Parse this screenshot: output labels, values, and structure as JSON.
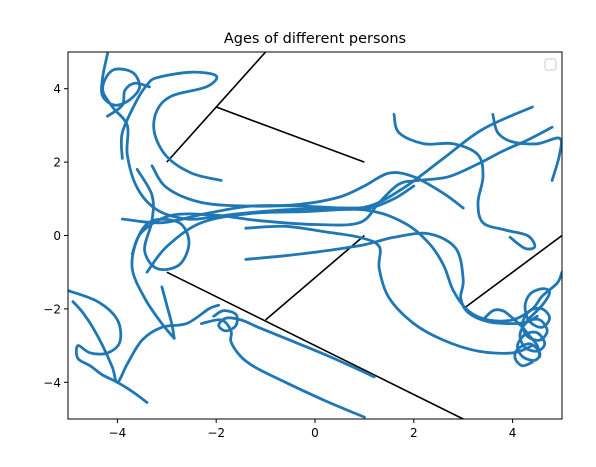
{
  "chart_data": {
    "type": "line",
    "title": "Ages of different persons",
    "xlabel": "",
    "ylabel": "",
    "xlim": [
      -5,
      5
    ],
    "ylim": [
      -5,
      5
    ],
    "x_ticks": [
      -4,
      -2,
      0,
      2,
      4
    ],
    "y_ticks": [
      -4,
      -2,
      0,
      2,
      4
    ],
    "grid": false,
    "legend": {
      "placement": "upper right",
      "entries": []
    },
    "colors": {
      "trajectory": "#1f77b4",
      "segment": "#000000"
    },
    "segments": [
      {
        "points": [
          [
            -3,
            2
          ],
          [
            -1,
            5
          ]
        ]
      },
      {
        "points": [
          [
            -2,
            3.5
          ],
          [
            1,
            2
          ]
        ]
      },
      {
        "points": [
          [
            -3,
            -1
          ],
          [
            3,
            -5
          ]
        ]
      },
      {
        "points": [
          [
            -1,
            -2.3
          ],
          [
            1,
            0
          ]
        ]
      },
      {
        "points": [
          [
            3,
            -2
          ],
          [
            5,
            0
          ]
        ]
      }
    ],
    "series": [
      {
        "points": [
          [
            -4.2,
            4.95
          ],
          [
            -4.3,
            4.3
          ],
          [
            -4.3,
            3.8
          ],
          [
            -4.05,
            3.55
          ],
          [
            -3.75,
            3.7
          ],
          [
            -3.55,
            4.05
          ],
          [
            -3.7,
            4.45
          ],
          [
            -4.1,
            4.5
          ],
          [
            -4.3,
            4.0
          ],
          [
            -4.1,
            3.5
          ],
          [
            -3.8,
            3.0
          ],
          [
            -3.8,
            2.2
          ],
          [
            -3.6,
            1.3
          ],
          [
            -3.2,
            0.7
          ],
          [
            -2.6,
            0.45
          ],
          [
            -2.1,
            0.5
          ],
          [
            -1.5,
            0.6
          ],
          [
            -0.6,
            0.7
          ],
          [
            0.4,
            0.75
          ],
          [
            1.1,
            0.8
          ],
          [
            1.8,
            1.3
          ],
          [
            2.6,
            2.1
          ],
          [
            3.4,
            2.9
          ],
          [
            4.4,
            3.5
          ]
        ]
      },
      {
        "points": [
          [
            -3.9,
            2.1
          ],
          [
            -3.9,
            2.8
          ],
          [
            -3.6,
            3.7
          ],
          [
            -3.4,
            4.1
          ],
          [
            -3.2,
            4.3
          ],
          [
            -2.5,
            4.45
          ],
          [
            -2.0,
            4.35
          ],
          [
            -2.2,
            4.05
          ],
          [
            -2.9,
            3.8
          ],
          [
            -3.2,
            3.4
          ],
          [
            -3.25,
            2.8
          ],
          [
            -3.0,
            2.15
          ],
          [
            -2.5,
            1.7
          ],
          [
            -1.9,
            1.5
          ]
        ]
      },
      {
        "points": [
          [
            -4.2,
            3.25
          ],
          [
            -3.9,
            3.55
          ],
          [
            -3.85,
            3.95
          ],
          [
            -3.65,
            4.15
          ],
          [
            -3.35,
            4.05
          ]
        ]
      },
      {
        "points": [
          [
            -3.6,
            1.8
          ],
          [
            -3.3,
            1.1
          ],
          [
            -3.3,
            0.4
          ],
          [
            -3.45,
            -0.4
          ],
          [
            -3.2,
            -0.9
          ],
          [
            -2.75,
            -0.8
          ],
          [
            -2.55,
            -0.2
          ],
          [
            -2.75,
            0.35
          ],
          [
            -3.3,
            0.4
          ],
          [
            -3.6,
            -0.1
          ],
          [
            -3.7,
            -0.9
          ],
          [
            -3.45,
            -1.7
          ],
          [
            -3.1,
            -2.4
          ],
          [
            -2.85,
            -2.8
          ]
        ]
      },
      {
        "points": [
          [
            -3.3,
            1.9
          ],
          [
            -3.0,
            1.3
          ],
          [
            -2.3,
            0.9
          ],
          [
            -1.3,
            0.8
          ],
          [
            -0.3,
            0.85
          ],
          [
            0.5,
            1.05
          ],
          [
            1.0,
            1.35
          ],
          [
            1.5,
            1.7
          ],
          [
            2.0,
            1.6
          ],
          [
            2.6,
            1.15
          ],
          [
            3.0,
            0.75
          ]
        ]
      },
      {
        "points": [
          [
            -3.7,
            -0.5
          ],
          [
            -3.5,
            0.1
          ],
          [
            -2.9,
            0.55
          ],
          [
            -2.0,
            0.55
          ],
          [
            -1.1,
            0.4
          ],
          [
            0.0,
            0.3
          ],
          [
            0.9,
            0.35
          ],
          [
            1.3,
            0.9
          ],
          [
            1.7,
            1.4
          ],
          [
            2.1,
            1.5
          ],
          [
            2.7,
            1.6
          ],
          [
            3.3,
            1.95
          ],
          [
            3.8,
            2.3
          ],
          [
            4.3,
            2.6
          ],
          [
            4.8,
            2.95
          ]
        ]
      },
      {
        "points": [
          [
            -3.4,
            -1.0
          ],
          [
            -3.0,
            -0.3
          ],
          [
            -2.3,
            0.35
          ],
          [
            -1.3,
            0.6
          ],
          [
            -0.2,
            0.65
          ],
          [
            1.0,
            0.7
          ],
          [
            1.8,
            0.35
          ],
          [
            2.3,
            -0.2
          ],
          [
            2.6,
            -0.8
          ],
          [
            2.8,
            -1.5
          ],
          [
            3.1,
            -2.05
          ],
          [
            3.5,
            -2.3
          ],
          [
            4.0,
            -2.3
          ],
          [
            4.4,
            -2.0
          ],
          [
            4.6,
            -1.65
          ],
          [
            4.9,
            -1.3
          ],
          [
            5.0,
            -1.0
          ]
        ]
      },
      {
        "points": [
          [
            -1.4,
            -0.65
          ],
          [
            -0.6,
            -0.55
          ],
          [
            0.3,
            -0.4
          ],
          [
            1.0,
            -0.25
          ],
          [
            1.6,
            -0.05
          ],
          [
            2.3,
            0.05
          ],
          [
            2.85,
            -0.35
          ],
          [
            3.0,
            -1.2
          ],
          [
            2.95,
            -1.7
          ],
          [
            3.1,
            -2.1
          ],
          [
            3.5,
            -2.35
          ],
          [
            4.0,
            -2.4
          ],
          [
            4.3,
            -2.35
          ],
          [
            4.5,
            -2.2
          ]
        ]
      },
      {
        "points": [
          [
            -1.4,
            0.2
          ],
          [
            -0.6,
            0.25
          ],
          [
            0.2,
            0.1
          ],
          [
            0.9,
            -0.05
          ],
          [
            1.3,
            -0.3
          ],
          [
            1.3,
            -0.9
          ],
          [
            1.5,
            -1.7
          ],
          [
            2.0,
            -2.4
          ],
          [
            2.6,
            -2.85
          ],
          [
            3.3,
            -3.15
          ],
          [
            4.0,
            -3.2
          ],
          [
            4.4,
            -3.0
          ]
        ]
      },
      {
        "points": [
          [
            -3.1,
            -1.4
          ],
          [
            -3.0,
            -1.9
          ],
          [
            -2.9,
            -2.4
          ],
          [
            -2.85,
            -2.8
          ]
        ]
      },
      {
        "points": [
          [
            -3.9,
            0.45
          ],
          [
            -3.1,
            0.35
          ],
          [
            -2.2,
            0.6
          ],
          [
            -1.3,
            0.8
          ],
          [
            -0.3,
            0.8
          ],
          [
            0.5,
            0.75
          ],
          [
            1.1,
            0.75
          ],
          [
            1.6,
            1.0
          ],
          [
            2.0,
            1.35
          ]
        ]
      },
      {
        "points": [
          [
            3.6,
            3.3
          ],
          [
            3.7,
            2.8
          ],
          [
            4.0,
            2.55
          ],
          [
            4.5,
            2.5
          ],
          [
            4.95,
            2.65
          ],
          [
            4.95,
            2.2
          ],
          [
            4.8,
            1.5
          ]
        ]
      },
      {
        "points": [
          [
            3.4,
            -2.3
          ],
          [
            3.6,
            -2.05
          ],
          [
            3.8,
            -2.05
          ],
          [
            4.0,
            -2.25
          ],
          [
            4.2,
            -2.5
          ],
          [
            4.35,
            -2.75
          ],
          [
            4.5,
            -3.0
          ],
          [
            4.55,
            -3.3
          ]
        ]
      },
      {
        "points": [
          [
            4.3,
            -2.3
          ],
          [
            4.6,
            -1.9
          ],
          [
            4.75,
            -1.55
          ],
          [
            4.6,
            -1.45
          ],
          [
            4.35,
            -1.6
          ],
          [
            4.25,
            -1.95
          ],
          [
            4.35,
            -2.35
          ],
          [
            4.6,
            -2.5
          ],
          [
            4.75,
            -2.25
          ],
          [
            4.6,
            -2.0
          ],
          [
            4.35,
            -2.05
          ],
          [
            4.2,
            -2.4
          ],
          [
            4.3,
            -2.75
          ],
          [
            4.55,
            -2.85
          ],
          [
            4.7,
            -2.6
          ],
          [
            4.55,
            -2.3
          ],
          [
            4.3,
            -2.35
          ],
          [
            4.15,
            -2.7
          ],
          [
            4.25,
            -3.05
          ],
          [
            4.5,
            -3.15
          ],
          [
            4.65,
            -2.95
          ],
          [
            4.5,
            -2.65
          ],
          [
            4.25,
            -2.7
          ],
          [
            4.1,
            -3.0
          ],
          [
            4.2,
            -3.3
          ],
          [
            4.45,
            -3.4
          ],
          [
            4.55,
            -3.2
          ],
          [
            4.35,
            -2.95
          ],
          [
            4.1,
            -3.1
          ],
          [
            4.05,
            -3.35
          ],
          [
            4.2,
            -3.55
          ],
          [
            4.4,
            -3.45
          ]
        ]
      },
      {
        "points": [
          [
            -5.0,
            -1.5
          ],
          [
            -4.4,
            -1.8
          ],
          [
            -4.0,
            -2.3
          ],
          [
            -3.95,
            -2.9
          ],
          [
            -4.2,
            -3.2
          ],
          [
            -4.55,
            -3.2
          ],
          [
            -4.8,
            -3.0
          ],
          [
            -4.8,
            -3.35
          ],
          [
            -4.55,
            -3.55
          ],
          [
            -4.3,
            -3.8
          ],
          [
            -4.0,
            -4.0
          ],
          [
            -3.7,
            -4.25
          ],
          [
            -3.4,
            -4.55
          ]
        ]
      },
      {
        "points": [
          [
            -4.9,
            -1.8
          ],
          [
            -4.7,
            -2.1
          ],
          [
            -4.5,
            -2.5
          ],
          [
            -4.3,
            -3.0
          ],
          [
            -4.1,
            -3.6
          ],
          [
            -4.0,
            -4.0
          ],
          [
            -3.8,
            -3.5
          ],
          [
            -3.5,
            -2.85
          ],
          [
            -3.1,
            -2.5
          ],
          [
            -2.6,
            -2.4
          ],
          [
            -2.15,
            -2.0
          ],
          [
            -1.95,
            -1.9
          ]
        ]
      },
      {
        "points": [
          [
            -2.3,
            -2.4
          ],
          [
            -1.9,
            -2.3
          ],
          [
            -1.7,
            -2.6
          ],
          [
            -1.7,
            -2.9
          ],
          [
            -1.5,
            -3.3
          ],
          [
            -1.2,
            -3.6
          ],
          [
            -0.6,
            -4.0
          ],
          [
            0.2,
            -4.5
          ],
          [
            1.0,
            -4.95
          ]
        ]
      },
      {
        "points": [
          [
            -2.05,
            -2.2
          ],
          [
            -1.85,
            -2.05
          ],
          [
            -1.6,
            -2.15
          ],
          [
            -1.6,
            -2.45
          ],
          [
            -1.8,
            -2.6
          ],
          [
            -1.95,
            -2.45
          ],
          [
            -1.8,
            -2.25
          ],
          [
            -1.5,
            -2.3
          ],
          [
            -1.15,
            -2.5
          ],
          [
            -0.6,
            -2.8
          ],
          [
            0.3,
            -3.3
          ],
          [
            1.2,
            -3.85
          ]
        ]
      },
      {
        "points": [
          [
            1.6,
            3.3
          ],
          [
            1.7,
            2.8
          ],
          [
            2.2,
            2.5
          ],
          [
            2.8,
            2.5
          ],
          [
            3.3,
            2.2
          ],
          [
            3.4,
            1.6
          ],
          [
            3.3,
            0.9
          ],
          [
            3.4,
            0.35
          ],
          [
            3.85,
            0.15
          ],
          [
            4.3,
            0.0
          ],
          [
            4.45,
            -0.3
          ],
          [
            4.25,
            -0.35
          ],
          [
            3.95,
            -0.05
          ]
        ]
      }
    ]
  }
}
